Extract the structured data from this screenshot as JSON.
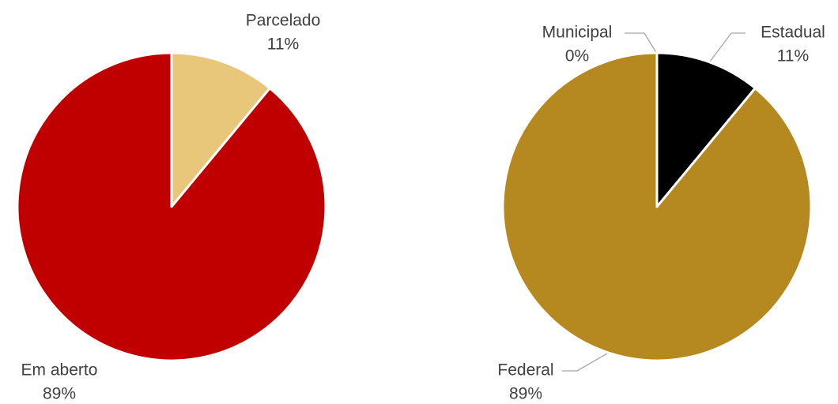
{
  "chart_data": [
    {
      "type": "pie",
      "categories": [
        "Parcelado",
        "Em aberto"
      ],
      "values": [
        11,
        89
      ],
      "value_labels": [
        "11%",
        "89%"
      ],
      "colors": [
        "#e8c77a",
        "#c00000"
      ]
    },
    {
      "type": "pie",
      "categories": [
        "Estadual",
        "Federal",
        "Municipal"
      ],
      "values": [
        11,
        89,
        0
      ],
      "value_labels": [
        "11%",
        "89%",
        "0%"
      ],
      "colors": [
        "#000000",
        "#b5891f",
        "#7f7f7f"
      ]
    }
  ]
}
